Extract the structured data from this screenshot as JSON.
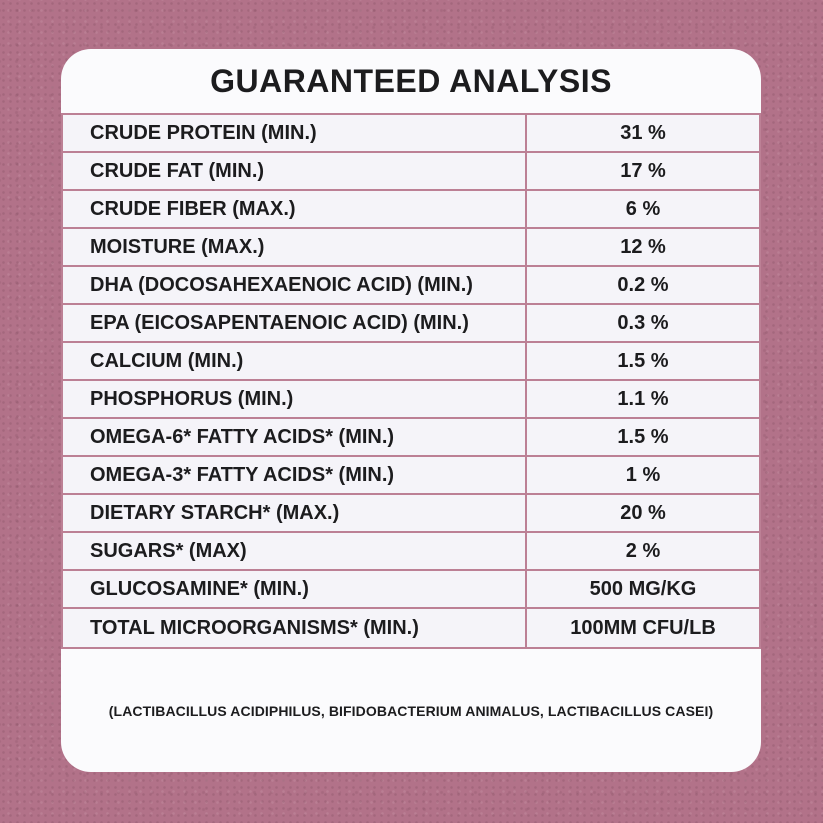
{
  "title": "GUARANTEED ANALYSIS",
  "table": {
    "rows": [
      {
        "label": "CRUDE PROTEIN (MIN.)",
        "value": "31 %"
      },
      {
        "label": "CRUDE FAT (MIN.)",
        "value": "17 %"
      },
      {
        "label": "CRUDE FIBER (MAX.)",
        "value": "6 %"
      },
      {
        "label": "MOISTURE (MAX.)",
        "value": "12 %"
      },
      {
        "label": "DHA (DOCOSAHEXAENOIC ACID) (MIN.)",
        "value": "0.2 %"
      },
      {
        "label": "EPA (EICOSAPENTAENOIC ACID) (MIN.)",
        "value": "0.3 %"
      },
      {
        "label": "CALCIUM (MIN.)",
        "value": "1.5 %"
      },
      {
        "label": "PHOSPHORUS (MIN.)",
        "value": "1.1 %"
      },
      {
        "label": "OMEGA-6* FATTY ACIDS* (MIN.)",
        "value": "1.5 %"
      },
      {
        "label": "OMEGA-3* FATTY ACIDS* (MIN.)",
        "value": "1 %"
      },
      {
        "label": "DIETARY STARCH* (MAX.)",
        "value": "20 %"
      },
      {
        "label": "SUGARS* (MAX)",
        "value": "2 %"
      },
      {
        "label": "GLUCOSAMINE* (MIN.)",
        "value": "500 MG/KG"
      },
      {
        "label": "TOTAL MICROORGANISMS* (MIN.)",
        "value": "100MM CFU/LB"
      }
    ]
  },
  "footnote": "(LACTIBACILLUS ACIDIPHILUS, BIFIDOBACTERIUM ANIMALUS, LACTIBACILLUS CASEI)",
  "colors": {
    "background": "#b27289",
    "card": "#fbfbfd",
    "row": "#f5f4f9",
    "border": "#bc8095",
    "text": "#1c1c1e"
  }
}
